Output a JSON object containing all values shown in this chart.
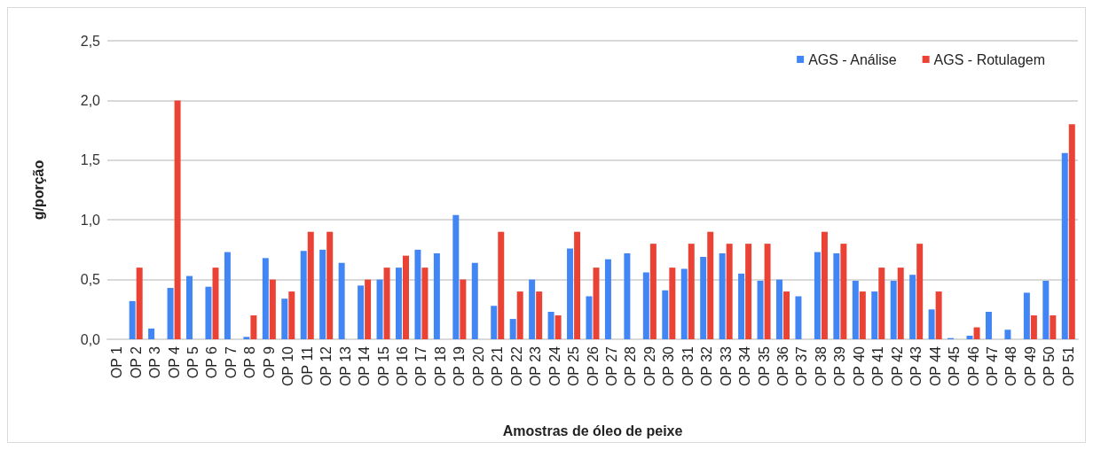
{
  "chart_data": {
    "type": "bar",
    "xlabel": "Amostras de óleo de peixe",
    "ylabel": "g/porção",
    "categories": [
      "OP 1",
      "OP 2",
      "OP 3",
      "OP 4",
      "OP 5",
      "OP 6",
      "OP 7",
      "OP 8",
      "OP 9",
      "OP 10",
      "OP 11",
      "OP 12",
      "OP 13",
      "OP 14",
      "OP 15",
      "OP 16",
      "OP 17",
      "OP 18",
      "OP 19",
      "OP 20",
      "OP 21",
      "OP 22",
      "OP 23",
      "OP 24",
      "OP 25",
      "OP 26",
      "OP 27",
      "OP 28",
      "OP 29",
      "OP 30",
      "OP 31",
      "OP 32",
      "OP 33",
      "OP 34",
      "OP 35",
      "OP 36",
      "OP 37",
      "OP 38",
      "OP 39",
      "OP 40",
      "OP 41",
      "OP 42",
      "OP 43",
      "OP 44",
      "OP 45",
      "OP 46",
      "OP 47",
      "OP 48",
      "OP 49",
      "OP 50",
      "OP 51"
    ],
    "series": [
      {
        "name": "AGS - Análise",
        "color": "#4285f4",
        "values": [
          null,
          0.32,
          0.09,
          0.43,
          0.53,
          0.44,
          0.73,
          0.02,
          0.68,
          0.34,
          0.74,
          0.75,
          0.64,
          0.45,
          0.5,
          0.6,
          0.75,
          0.72,
          1.04,
          0.64,
          0.28,
          0.17,
          0.5,
          0.23,
          0.76,
          0.36,
          0.67,
          0.72,
          0.56,
          0.41,
          0.59,
          0.69,
          0.72,
          0.55,
          0.49,
          0.5,
          0.36,
          0.73,
          0.72,
          0.49,
          0.4,
          0.49,
          0.54,
          0.25,
          0.01,
          0.03,
          0.23,
          0.08,
          0.39,
          0.49,
          1.56
        ]
      },
      {
        "name": "AGS - Rotulagem",
        "color": "#ea4335",
        "values": [
          null,
          0.6,
          null,
          2.0,
          null,
          0.6,
          null,
          0.2,
          0.5,
          0.4,
          0.9,
          0.9,
          null,
          0.5,
          0.6,
          0.7,
          0.6,
          null,
          0.5,
          null,
          0.9,
          0.4,
          0.4,
          0.2,
          0.9,
          0.6,
          null,
          null,
          0.8,
          0.6,
          0.8,
          0.9,
          0.8,
          0.8,
          0.8,
          0.4,
          null,
          0.9,
          0.8,
          0.4,
          0.6,
          0.6,
          0.8,
          0.4,
          null,
          0.1,
          null,
          null,
          0.2,
          0.2,
          1.8
        ]
      }
    ],
    "ylim": [
      0,
      2.5
    ],
    "yticks": [
      {
        "value": 0,
        "label": "0,0"
      },
      {
        "value": 0.5,
        "label": "0,5"
      },
      {
        "value": 1,
        "label": "1,0"
      },
      {
        "value": 1.5,
        "label": "1,5"
      },
      {
        "value": 2,
        "label": "2,0"
      },
      {
        "value": 2.5,
        "label": "2,5"
      }
    ],
    "grid": "y",
    "legend": "top right"
  }
}
